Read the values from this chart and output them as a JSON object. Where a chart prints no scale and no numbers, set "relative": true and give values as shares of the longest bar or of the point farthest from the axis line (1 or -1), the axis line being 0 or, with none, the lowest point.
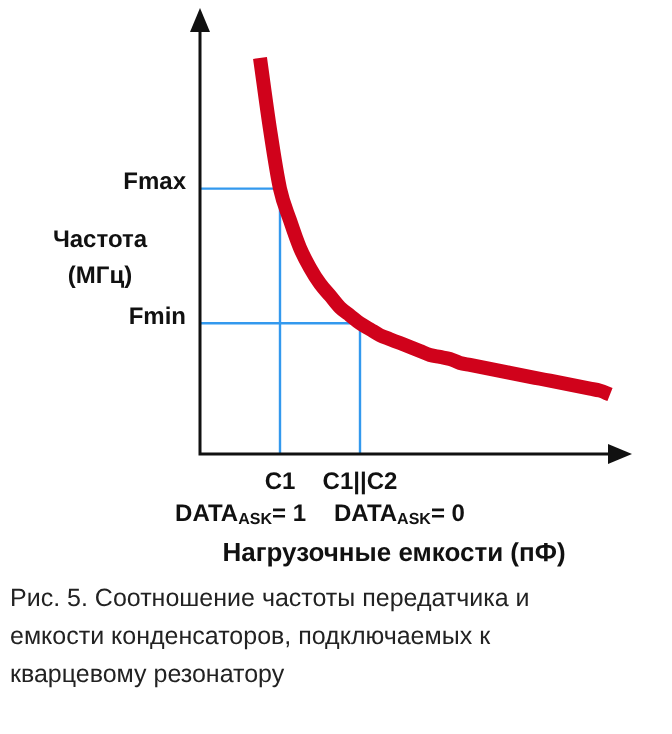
{
  "chart_data": {
    "type": "line",
    "relative": true,
    "xlabel": "Нагрузочные емкости (пФ)",
    "ylabel": "Частота (МГц)",
    "marker": "none",
    "legend": false,
    "categories": [
      null,
      null,
      "C1",
      null,
      null,
      null,
      null,
      null,
      null,
      null,
      "C1||C2",
      null,
      null,
      null,
      null,
      null,
      null,
      null,
      null,
      null,
      null,
      null,
      null,
      null,
      null,
      null,
      null,
      null,
      null,
      null,
      null,
      null,
      null,
      null,
      null,
      null
    ],
    "series": [
      {
        "color": "#d0021b",
        "values": [
          1.0,
          0.82,
          0.67,
          0.59,
          0.52,
          0.47,
          0.43,
          0.4,
          0.37,
          0.35,
          0.33,
          0.315,
          0.3,
          0.29,
          0.28,
          0.27,
          0.26,
          0.25,
          0.245,
          0.24,
          0.23,
          0.225,
          0.22,
          0.215,
          0.21,
          0.205,
          0.2,
          0.195,
          0.19,
          0.185,
          0.18,
          0.175,
          0.17,
          0.165,
          0.16,
          0.15
        ]
      }
    ],
    "ref_lines": [
      {
        "axis": "x",
        "value": "C1",
        "color": "#3399ee"
      },
      {
        "axis": "x",
        "value": "C1||C2",
        "color": "#3399ee"
      },
      {
        "axis": "y",
        "value": 0.67,
        "label": "Fmax",
        "color": "#3399ee"
      },
      {
        "axis": "y",
        "value": 0.33,
        "label": "Fmin",
        "color": "#3399ee"
      }
    ],
    "annotations": [
      "DATA$_{ASK}$= 1",
      "DATA$_{ASK}$= 0",
      "Рис. 5. Соотношение частоты передатчика и емкости конденсаторов, подключаемых к кварцевому резонатору"
    ]
  }
}
